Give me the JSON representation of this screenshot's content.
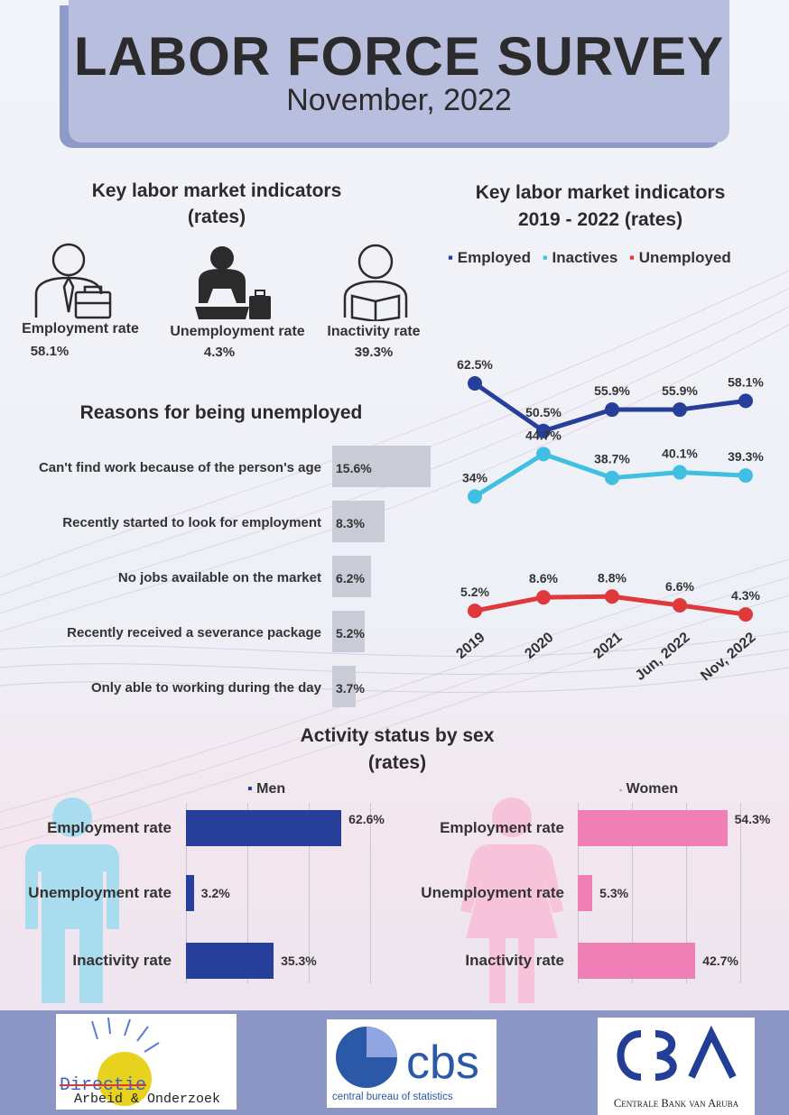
{
  "header": {
    "title": "LABOR FORCE SURVEY",
    "subtitle": "November, 2022"
  },
  "indicators": {
    "heading_line1": "Key labor market indicators",
    "heading_line2": "(rates)",
    "items": [
      {
        "label": "Employment rate",
        "value": "58.1%",
        "icon": "businessman-icon"
      },
      {
        "label": "Unemployment rate",
        "value": "4.3%",
        "icon": "sad-person-icon"
      },
      {
        "label": "Inactivity rate",
        "value": "39.3%",
        "icon": "reading-person-icon"
      }
    ]
  },
  "reasons": {
    "heading": "Reasons for being unemployed",
    "items": [
      {
        "label": "Can't find work because of the person's age",
        "value": 15.6,
        "display": "15.6%"
      },
      {
        "label": "Recently started to look for employment",
        "value": 8.3,
        "display": "8.3%"
      },
      {
        "label": "No jobs available on the market",
        "value": 6.2,
        "display": "6.2%"
      },
      {
        "label": "Recently received a severance package",
        "value": 5.2,
        "display": "5.2%"
      },
      {
        "label": "Only able to working during the day",
        "value": 3.7,
        "display": "3.7%"
      }
    ]
  },
  "trend": {
    "heading_line1": "Key labor market indicators",
    "heading_line2": "2019 - 2022 (rates)"
  },
  "chart_data": [
    {
      "type": "line",
      "categories": [
        "2019",
        "2020",
        "2021",
        "Jun, 2022",
        "Nov, 2022"
      ],
      "series": [
        {
          "name": "Employed",
          "color": "#253f9a",
          "values": [
            62.5,
            50.5,
            55.9,
            55.9,
            58.1
          ],
          "labels": [
            "62.5%",
            "50.5%",
            "55.9%",
            "55.9%",
            "58.1%"
          ]
        },
        {
          "name": "Inactives",
          "color": "#41bfe3",
          "values": [
            34,
            44.7,
            38.7,
            40.1,
            39.3
          ],
          "labels": [
            "34%",
            "44.7%",
            "38.7%",
            "40.1%",
            "39.3%"
          ]
        },
        {
          "name": "Unemployed",
          "color": "#e0393b",
          "values": [
            5.2,
            8.6,
            8.8,
            6.6,
            4.3
          ],
          "labels": [
            "5.2%",
            "8.6%",
            "8.8%",
            "6.6%",
            "4.3%"
          ]
        }
      ],
      "legend": "top",
      "grid": false
    },
    {
      "type": "bar",
      "orientation": "horizontal",
      "categories": [
        "Can't find work because of the person's age",
        "Recently started to look for employment",
        "No jobs available on the market",
        "Recently received a severance package",
        "Only able to working during the day"
      ],
      "values": [
        15.6,
        8.3,
        6.2,
        5.2,
        3.7
      ]
    },
    {
      "type": "bar",
      "orientation": "horizontal",
      "categories": [
        "Employment rate",
        "Unemployment rate",
        "Inactivity rate"
      ],
      "series": [
        {
          "name": "Men",
          "color": "#253f9a",
          "values": [
            62.6,
            3.2,
            35.3
          ],
          "labels": [
            "62.6%",
            "3.2%",
            "35.3%"
          ]
        },
        {
          "name": "Women",
          "color": "#f07fb6",
          "values": [
            54.3,
            5.3,
            42.7
          ],
          "labels": [
            "54.3%",
            "5.3%",
            "42.7%"
          ]
        }
      ]
    }
  ],
  "sex": {
    "heading_line1": "Activity status by sex",
    "heading_line2": "(rates)"
  },
  "footer": {
    "logo1_line1": "Directie",
    "logo1_line2": "Arbeid & Onderzoek",
    "logo2_main": "cbs",
    "logo2_sub": "central bureau of statistics",
    "logo3_sub": "Centrale Bank van Aruba"
  }
}
